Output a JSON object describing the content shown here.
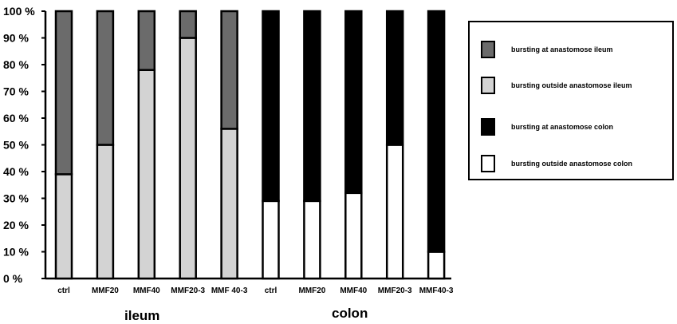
{
  "chart_data": {
    "type": "bar",
    "stacked": true,
    "percent": true,
    "categories": [
      "ctrl",
      "MMF20",
      "MMF40",
      "MMF20-3",
      "MMF 40-3",
      "ctrl",
      "MMF20",
      "MMF40",
      "MMF20-3",
      "MMF40-3"
    ],
    "groups": [
      {
        "label": "ileum",
        "categories": [
          "ctrl",
          "MMF20",
          "MMF40",
          "MMF20-3",
          "MMF 40-3"
        ]
      },
      {
        "label": "colon",
        "categories": [
          "ctrl",
          "MMF20",
          "MMF40",
          "MMF20-3",
          "MMF40-3"
        ]
      }
    ],
    "series": [
      {
        "name": "bursting at anastomose ileum",
        "color": "#6b6b6b",
        "values": [
          61,
          50,
          22,
          10,
          44,
          0,
          0,
          0,
          0,
          0
        ]
      },
      {
        "name": "bursting outside anastomose ileum",
        "color": "#d3d3d3",
        "values": [
          39,
          50,
          78,
          90,
          56,
          0,
          0,
          0,
          0,
          0
        ]
      },
      {
        "name": "bursting at anastomose colon",
        "color": "#000000",
        "values": [
          0,
          0,
          0,
          0,
          0,
          71,
          71,
          68,
          50,
          90
        ]
      },
      {
        "name": "bursting outside anastomose colon",
        "color": "#ffffff",
        "values": [
          0,
          0,
          0,
          0,
          0,
          29,
          29,
          32,
          50,
          10
        ]
      }
    ],
    "stack_order_bottom_to_top": [
      [
        "bursting outside anastomose ileum",
        "bursting at anastomose ileum"
      ],
      [
        "bursting outside anastomose colon",
        "bursting at anastomose colon"
      ]
    ],
    "ylim": [
      0,
      100
    ],
    "yticks": [
      "0 %",
      "10 %",
      "20 %",
      "30 %",
      "40 %",
      "50 %",
      "60 %",
      "70 %",
      "80 %",
      "90 %",
      "100 %"
    ],
    "xlabel": "",
    "ylabel": "",
    "title": "",
    "legend_position": "right",
    "grid": false
  }
}
